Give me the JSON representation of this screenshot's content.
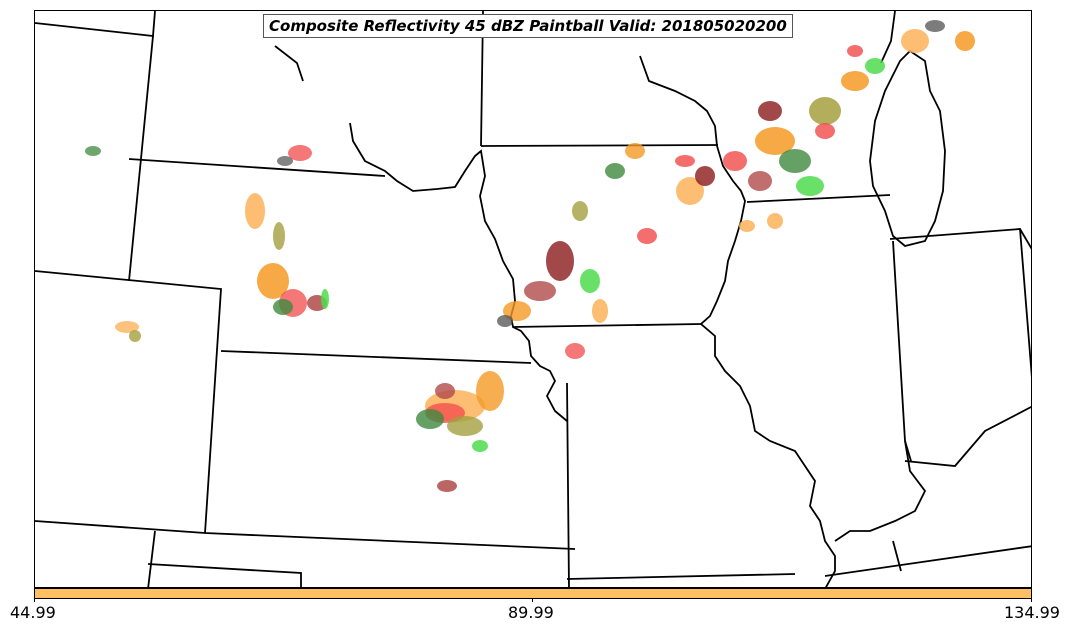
{
  "title": "Composite Reflectivity 45 dBZ Paintball Valid: 201805020200",
  "colorbar": {
    "color": "#fec062",
    "ticks": [
      "44.99",
      "89.99",
      "134.99"
    ]
  },
  "paintball_colors": {
    "light_green": "#4fdc4f",
    "dark_green": "#3e8a3e",
    "olive": "#a4a040",
    "orange": "#f59a25",
    "light_orange": "#fdb35a",
    "red": "#f24a4a",
    "dark_red": "#8b1a1a",
    "maroon_rose": "#b04a4a",
    "gray": "#505050"
  }
}
